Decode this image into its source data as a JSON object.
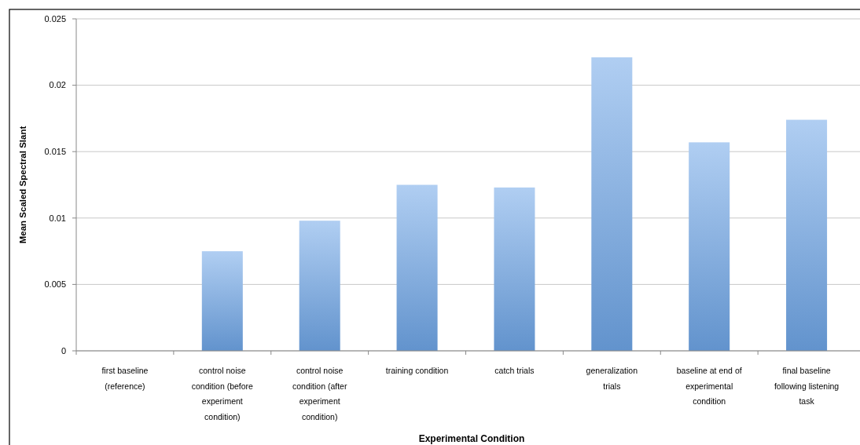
{
  "chart_data": {
    "type": "bar",
    "xlabel": "Experimental Condition",
    "ylabel": "Mean Scaled Spectral Slant",
    "categories": [
      "first baseline (reference)",
      "control noise condition (before experiment condition)",
      "control noise condition (after experiment condition)",
      "training condition",
      "catch trials",
      "generalization trials",
      "baseline at end of experimental condition",
      "final baseline following listening task"
    ],
    "values": [
      0,
      0.0075,
      0.0098,
      0.0125,
      0.0123,
      0.0221,
      0.0157,
      0.0174
    ],
    "color": "#6fa6e8",
    "ylim": [
      0,
      0.025
    ],
    "yticks": [
      0,
      0.005,
      0.01,
      0.015,
      0.02,
      0.025
    ],
    "grid": "y"
  }
}
